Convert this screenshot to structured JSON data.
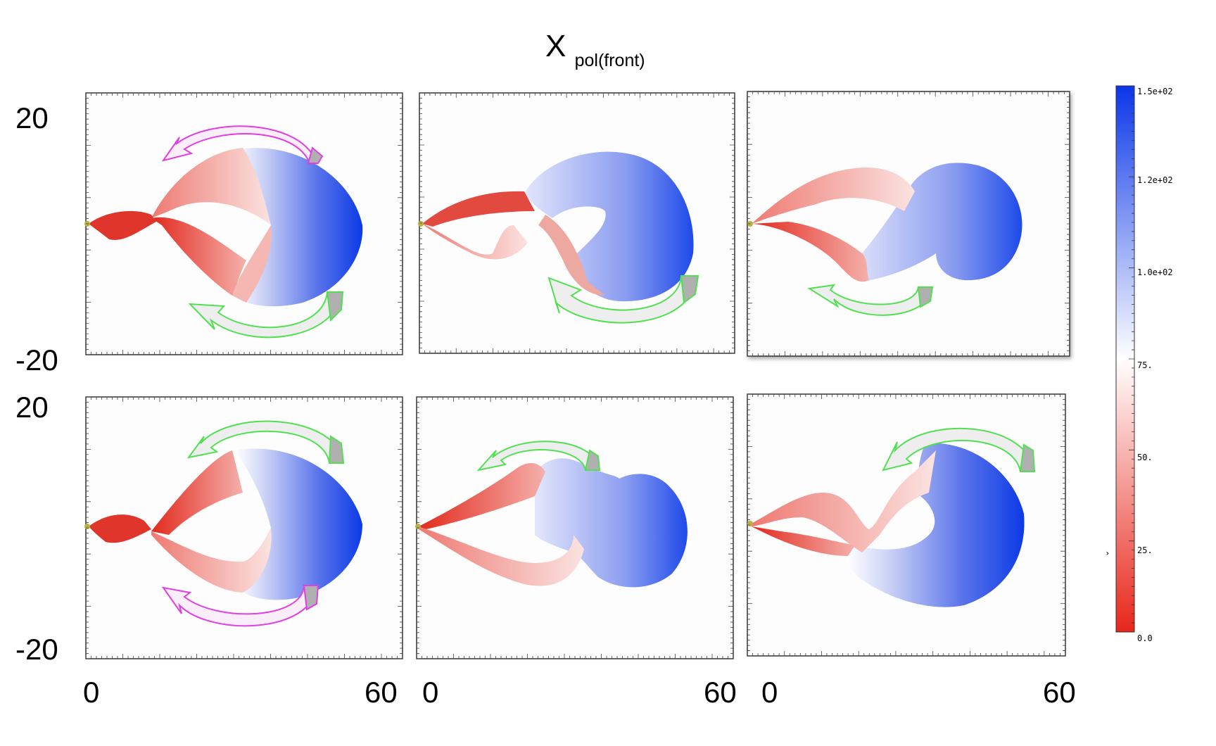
{
  "title": {
    "main": "X",
    "subscript": "pol(front)"
  },
  "y_axis": {
    "top_label": "20",
    "bottom_label": "-20"
  },
  "x_axis": {
    "left_label": "0",
    "right_label": "60"
  },
  "colorbar": {
    "tick_labels": [
      "1.5e+02",
      "1.2e+02",
      "1.0e+02",
      "75.",
      "50.",
      "25.",
      "0.0"
    ],
    "side_mark": "›",
    "colors": {
      "high": "#0a36e8",
      "mid": "#ffffff",
      "low": "#e8261a"
    }
  },
  "panels": [
    {
      "id": "top-left",
      "arrows": [
        "magenta-counterclockwise-top",
        "green-clockwise-bottom"
      ]
    },
    {
      "id": "top-middle",
      "arrows": [
        "green-clockwise-bottom"
      ]
    },
    {
      "id": "top-right",
      "arrows": [
        "green-clockwise-bottom"
      ]
    },
    {
      "id": "bottom-left",
      "arrows": [
        "green-counterclockwise-top",
        "magenta-clockwise-bottom"
      ]
    },
    {
      "id": "bottom-middle",
      "arrows": [
        "green-counterclockwise-top"
      ]
    },
    {
      "id": "bottom-right",
      "arrows": [
        "green-counterclockwise-top"
      ]
    }
  ],
  "arrow_colors": {
    "green": "#52e052",
    "magenta": "#e040e0",
    "fill_light": "#eeeeee",
    "fill_dark": "#b0b0b0"
  }
}
